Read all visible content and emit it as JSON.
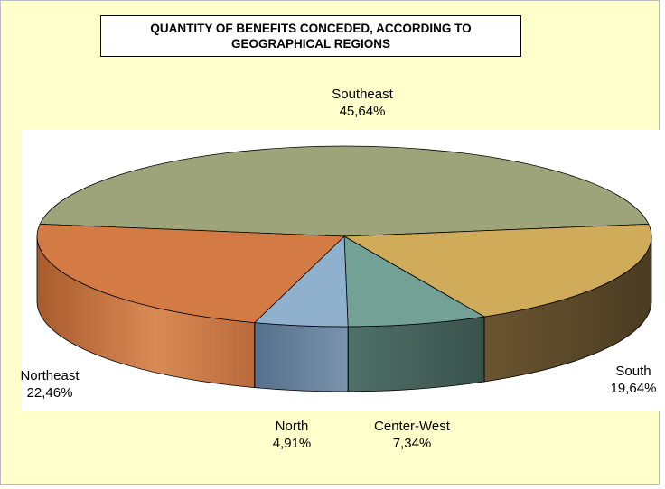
{
  "chart_data": {
    "type": "pie",
    "title_lines": [
      "QUANTITY OF BENEFITS CONCEDED, ACCORDING TO",
      "GEOGRAPHICAL REGIONS"
    ],
    "slices": [
      {
        "name": "Southeast",
        "value": 45.64,
        "label": "45,64%",
        "color": "#9ea47a"
      },
      {
        "name": "South",
        "value": 19.64,
        "label": "19,64%",
        "color": "#d0ab5a"
      },
      {
        "name": "Center-West",
        "value": 7.34,
        "label": "7,34%",
        "color": "#74a195"
      },
      {
        "name": "North",
        "value": 4.91,
        "label": "4,91%",
        "color": "#8fb1cd"
      },
      {
        "name": "Northeast",
        "value": 22.46,
        "label": "22,46%",
        "color": "#d47b45"
      }
    ],
    "three_d": true,
    "legend": "none"
  }
}
